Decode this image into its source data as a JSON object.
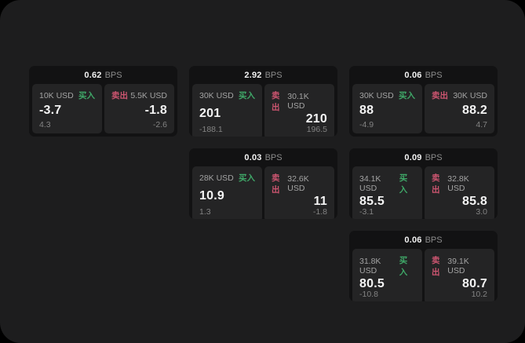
{
  "colors": {
    "buy_green": "#3fa868",
    "sell_red": "#cc5570",
    "window_bg": "#1d1d1e",
    "card_bg": "#121213",
    "panel_bg": "#242425"
  },
  "labels": {
    "bps_unit": "BPS",
    "buy": "买入",
    "sell": "卖出"
  },
  "cards": [
    {
      "bps": "0.62",
      "buy": {
        "amount": "10K USD",
        "price": "-3.7",
        "delta": "4.3"
      },
      "sell": {
        "amount": "5.5K USD",
        "price": "-1.8",
        "delta": "-2.6"
      }
    },
    {
      "bps": "2.92",
      "buy": {
        "amount": "30K USD",
        "price": "201",
        "delta": "-188.1"
      },
      "sell": {
        "amount": "30.1K USD",
        "price": "210",
        "delta": "196.5"
      }
    },
    {
      "bps": "0.06",
      "buy": {
        "amount": "30K USD",
        "price": "88",
        "delta": "-4.9"
      },
      "sell": {
        "amount": "30K USD",
        "price": "88.2",
        "delta": "4.7"
      }
    },
    {
      "bps": "0.03",
      "buy": {
        "amount": "28K USD",
        "price": "10.9",
        "delta": "1.3"
      },
      "sell": {
        "amount": "32.6K USD",
        "price": "11",
        "delta": "-1.8"
      }
    },
    {
      "bps": "0.09",
      "buy": {
        "amount": "34.1K USD",
        "price": "85.5",
        "delta": "-3.1"
      },
      "sell": {
        "amount": "32.8K USD",
        "price": "85.8",
        "delta": "3.0"
      }
    },
    {
      "bps": "0.06",
      "buy": {
        "amount": "31.8K USD",
        "price": "80.5",
        "delta": "-10.8"
      },
      "sell": {
        "amount": "39.1K USD",
        "price": "80.7",
        "delta": "10.2"
      }
    }
  ]
}
